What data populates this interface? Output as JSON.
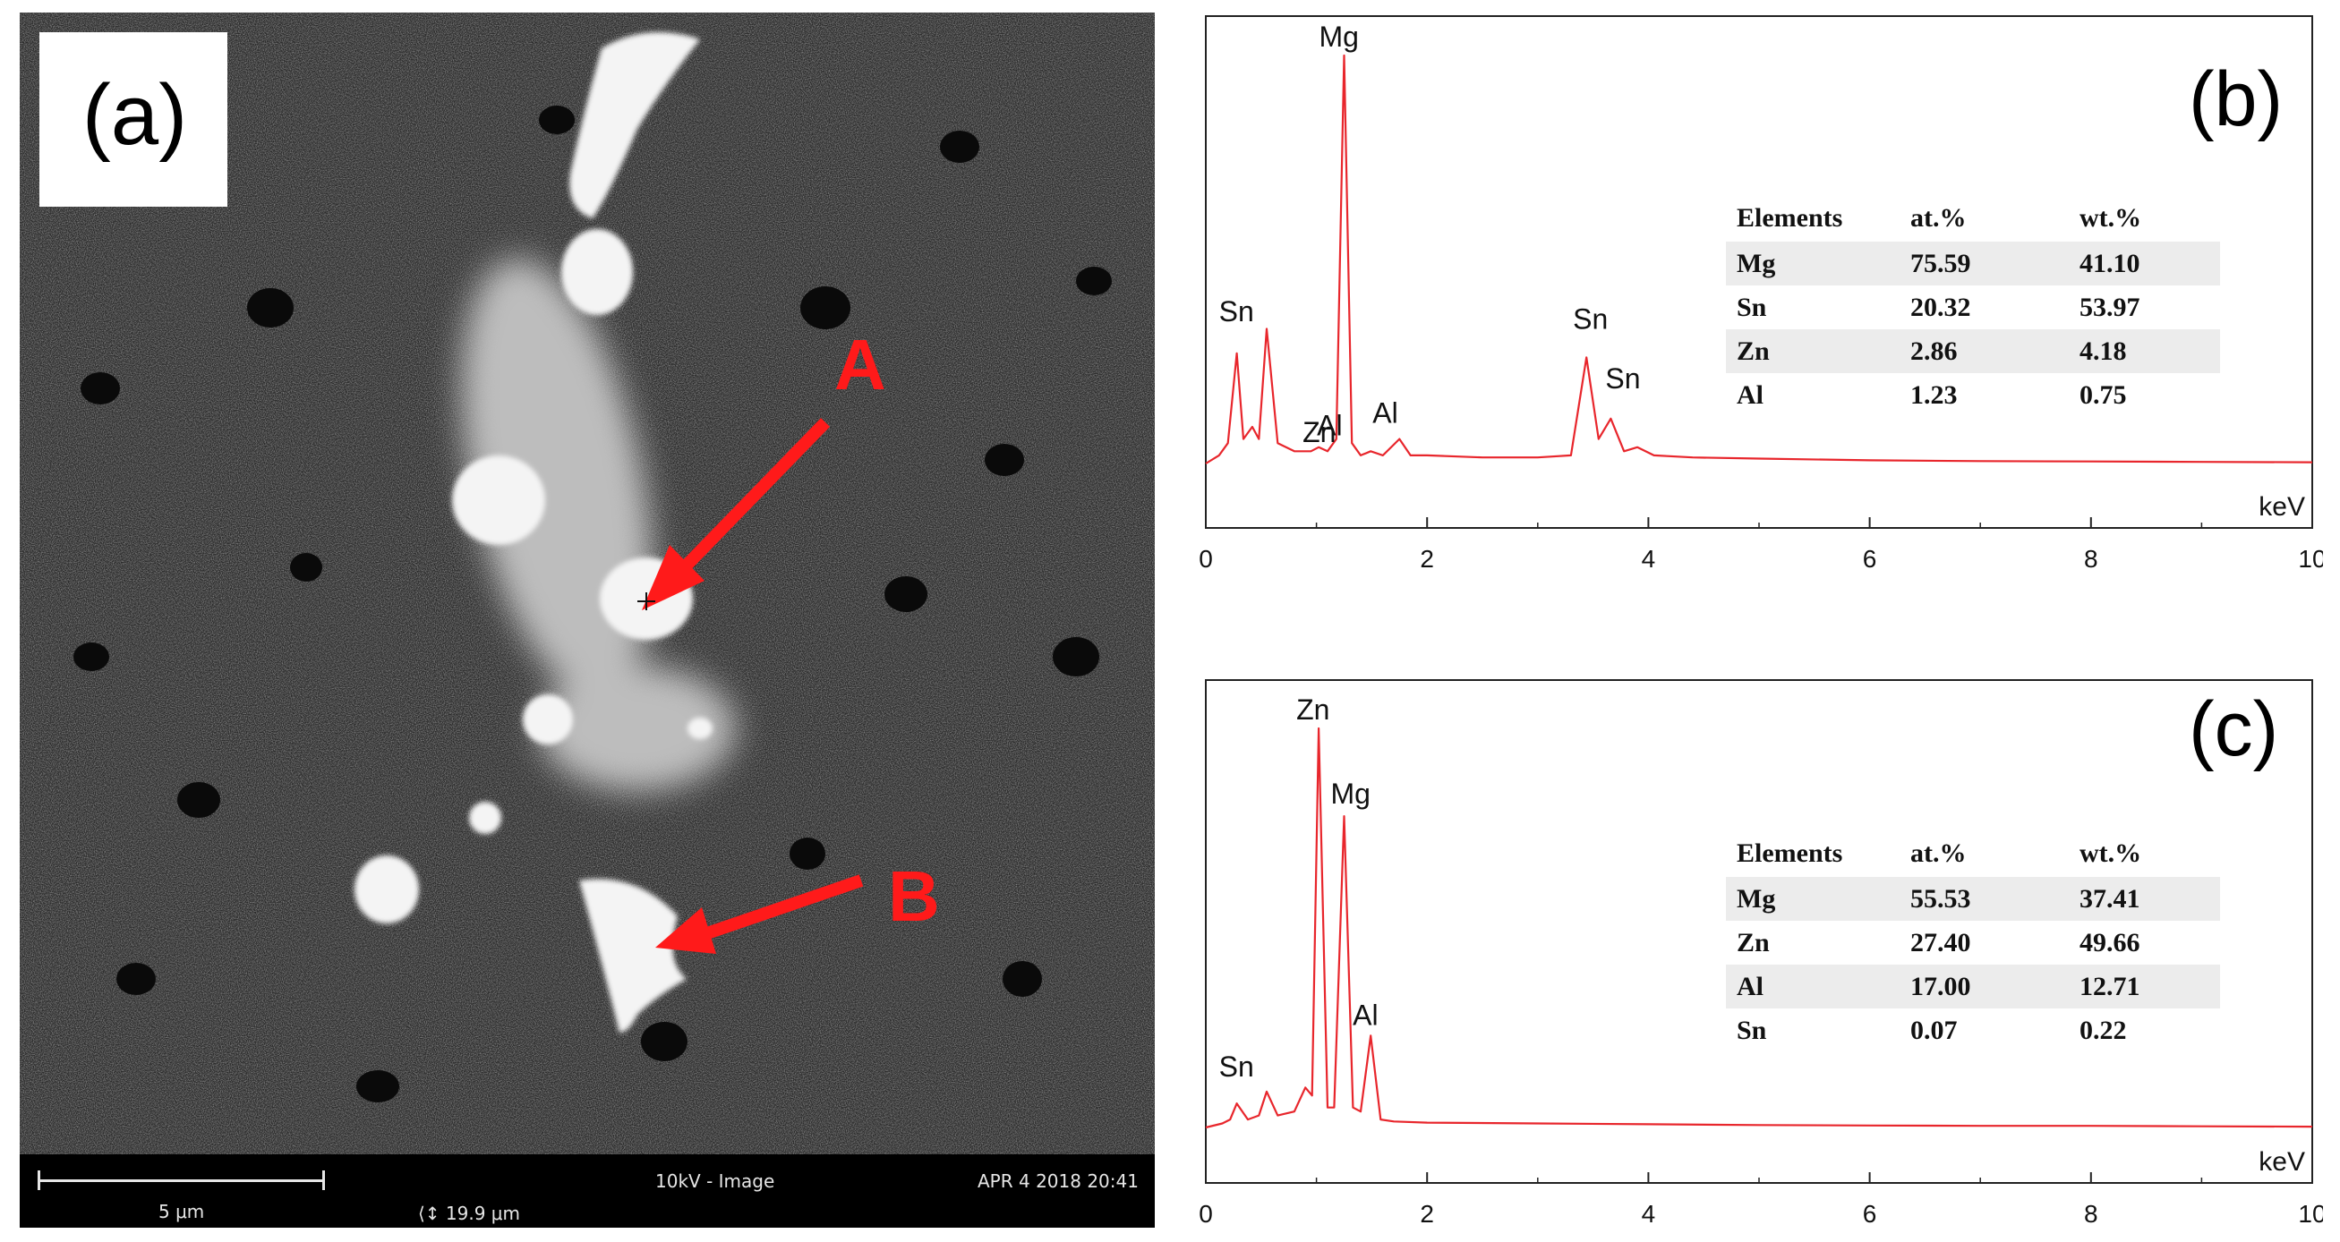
{
  "panel_a": {
    "label": "(a)",
    "point_labels": [
      "A",
      "B"
    ],
    "scalebar": {
      "scale_text": "5 μm",
      "mode_text": "10kV - Image",
      "date_text": "APR 4 2018 20:41",
      "field_text": "19.9 μm"
    }
  },
  "panel_b": {
    "label": "(b)",
    "table": {
      "headers": [
        "Elements",
        "at.%",
        "wt.%"
      ],
      "rows": [
        [
          "Mg",
          "75.59",
          "41.10"
        ],
        [
          "Sn",
          "20.32",
          "53.97"
        ],
        [
          "Zn",
          "2.86",
          "4.18"
        ],
        [
          "Al",
          "1.23",
          "0.75"
        ]
      ]
    }
  },
  "panel_c": {
    "label": "(c)",
    "table": {
      "headers": [
        "Elements",
        "at.%",
        "wt.%"
      ],
      "rows": [
        [
          "Mg",
          "55.53",
          "37.41"
        ],
        [
          "Zn",
          "27.40",
          "49.66"
        ],
        [
          "Al",
          "17.00",
          "12.71"
        ],
        [
          "Sn",
          "0.07",
          "0.22"
        ]
      ]
    }
  },
  "colors": {
    "spectrum_line": "#e8262c",
    "annotation": "#ff1a1a"
  },
  "chart_data": [
    {
      "type": "line",
      "panel": "(b)",
      "xlabel": "keV",
      "xlim": [
        0,
        10
      ],
      "xticks": [
        0,
        2,
        4,
        6,
        8,
        10
      ],
      "y_tick_labels": false,
      "peaks": [
        {
          "label": "Sn",
          "x": 0.28,
          "height": 0.27
        },
        {
          "label": "",
          "x": 0.42,
          "height": 0.09
        },
        {
          "label": "",
          "x": 0.55,
          "height": 0.33
        },
        {
          "label": "Zn",
          "x": 1.02,
          "height": 0.04
        },
        {
          "label": "Mg",
          "x": 1.25,
          "height": 1.0
        },
        {
          "label": "Al",
          "x": 1.49,
          "height": 0.03
        },
        {
          "label": "Al",
          "x": 1.75,
          "height": 0.06
        },
        {
          "label": "Sn",
          "x": 3.44,
          "height": 0.26
        },
        {
          "label": "Sn",
          "x": 3.66,
          "height": 0.11
        },
        {
          "label": "",
          "x": 3.9,
          "height": 0.04
        }
      ],
      "series": [
        {
          "x": [
            0.0,
            0.12,
            0.2,
            0.28,
            0.34,
            0.42,
            0.48,
            0.55,
            0.65,
            0.8,
            0.95,
            1.02,
            1.1,
            1.18,
            1.25,
            1.32,
            1.4,
            1.49,
            1.6,
            1.75,
            1.85,
            2.0,
            2.5,
            3.0,
            3.3,
            3.44,
            3.55,
            3.66,
            3.78,
            3.9,
            4.05,
            4.4,
            5.0,
            6.0,
            7.0,
            8.0,
            9.0,
            10.0
          ],
          "y": [
            0.0,
            0.02,
            0.05,
            0.27,
            0.06,
            0.09,
            0.06,
            0.33,
            0.05,
            0.03,
            0.03,
            0.04,
            0.03,
            0.06,
            1.0,
            0.05,
            0.02,
            0.03,
            0.02,
            0.06,
            0.02,
            0.02,
            0.015,
            0.015,
            0.02,
            0.26,
            0.06,
            0.11,
            0.03,
            0.04,
            0.02,
            0.015,
            0.012,
            0.008,
            0.006,
            0.005,
            0.004,
            0.003
          ]
        }
      ]
    },
    {
      "type": "line",
      "panel": "(c)",
      "xlabel": "keV",
      "xlim": [
        0,
        10
      ],
      "xticks": [
        0,
        2,
        4,
        6,
        8,
        10
      ],
      "y_tick_labels": false,
      "peaks": [
        {
          "label": "Sn",
          "x": 0.28,
          "height": 0.06
        },
        {
          "label": "",
          "x": 0.55,
          "height": 0.09
        },
        {
          "label": "Zn",
          "x": 1.02,
          "height": 1.0
        },
        {
          "label": "Mg",
          "x": 1.25,
          "height": 0.78
        },
        {
          "label": "Al",
          "x": 1.49,
          "height": 0.23
        }
      ],
      "series": [
        {
          "x": [
            0.0,
            0.15,
            0.22,
            0.28,
            0.38,
            0.48,
            0.55,
            0.65,
            0.8,
            0.9,
            0.96,
            1.02,
            1.1,
            1.16,
            1.25,
            1.33,
            1.4,
            1.49,
            1.58,
            1.7,
            2.0,
            3.0,
            4.0,
            5.0,
            6.0,
            7.0,
            8.0,
            9.0,
            10.0
          ],
          "y": [
            0.0,
            0.01,
            0.02,
            0.06,
            0.02,
            0.03,
            0.09,
            0.03,
            0.04,
            0.1,
            0.08,
            1.0,
            0.05,
            0.05,
            0.78,
            0.05,
            0.04,
            0.23,
            0.02,
            0.015,
            0.012,
            0.01,
            0.008,
            0.006,
            0.005,
            0.004,
            0.004,
            0.003,
            0.002
          ]
        }
      ]
    }
  ]
}
